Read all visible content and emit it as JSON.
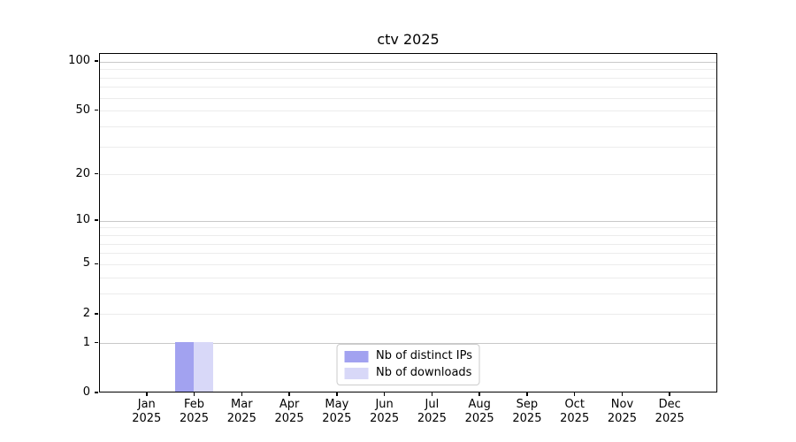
{
  "chart_data": {
    "type": "bar",
    "title": "ctv 2025",
    "x": {
      "categories": [
        "Jan",
        "Feb",
        "Mar",
        "Apr",
        "May",
        "Jun",
        "Jul",
        "Aug",
        "Sep",
        "Oct",
        "Nov",
        "Dec"
      ],
      "sublabel": "2025"
    },
    "series": [
      {
        "name": "Nb of distinct IPs",
        "color": "#a2a2f0",
        "values": [
          0,
          1,
          0,
          0,
          0,
          0,
          0,
          0,
          0,
          0,
          0,
          0
        ]
      },
      {
        "name": "Nb of downloads",
        "color": "#d8d8f8",
        "values": [
          0,
          1,
          0,
          0,
          0,
          0,
          0,
          0,
          0,
          0,
          0,
          0
        ]
      }
    ],
    "y_axis": {
      "scale": "log1p",
      "ylim": [
        0,
        112
      ],
      "ticks": [
        0,
        1,
        2,
        5,
        10,
        20,
        50,
        100
      ],
      "major_gridlines": [
        1,
        10,
        100
      ],
      "minor_gridlines": [
        2,
        3,
        4,
        5,
        6,
        7,
        8,
        9,
        20,
        30,
        40,
        50,
        60,
        70,
        80,
        90
      ]
    },
    "legend": {
      "position": "lower center"
    },
    "colors": {
      "axis": "#000000",
      "text": "#000000",
      "grid_major": "#c9c9c9",
      "grid_minor": "#ececec",
      "background": "#ffffff"
    }
  }
}
